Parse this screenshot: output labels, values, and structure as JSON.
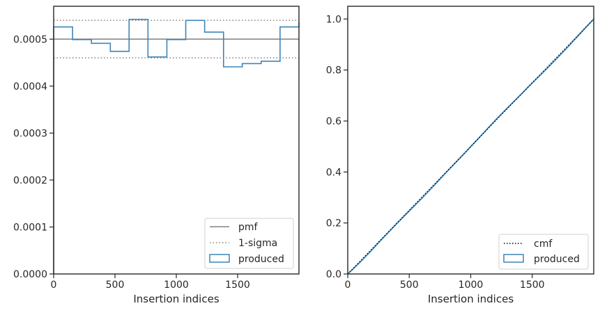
{
  "chart_data": [
    {
      "type": "step",
      "xlabel": "Insertion indices",
      "ylabel": "",
      "xlim": [
        0,
        2000
      ],
      "ylim": [
        0,
        0.00057
      ],
      "xticks": [
        0,
        500,
        1000,
        1500
      ],
      "xtick_labels": [
        "0",
        "500",
        "1000",
        "1500"
      ],
      "yticks": [
        0,
        0.0001,
        0.0002,
        0.0003,
        0.0004,
        0.0005
      ],
      "ytick_labels": [
        "0.0000",
        "0.0001",
        "0.0002",
        "0.0003",
        "0.0004",
        "0.0005"
      ],
      "legend_position": "lower right",
      "legend": [
        "pmf",
        "1-sigma",
        "produced"
      ],
      "pmf": 0.0005,
      "sigma_band": [
        0.00046,
        0.00054
      ],
      "bin_edges": [
        0,
        154,
        308,
        462,
        615,
        769,
        923,
        1077,
        1231,
        1385,
        1538,
        1692,
        1846,
        2000
      ],
      "produced": [
        0.000526,
        0.000499,
        0.000491,
        0.000474,
        0.000542,
        0.000462,
        0.000499,
        0.00054,
        0.000515,
        0.000441,
        0.000448,
        0.000453,
        0.000526,
        0.000536
      ]
    },
    {
      "type": "line",
      "xlabel": "Insertion indices",
      "ylabel": "",
      "xlim": [
        0,
        2000
      ],
      "ylim": [
        0,
        1.05
      ],
      "xticks": [
        0,
        500,
        1000,
        1500
      ],
      "xtick_labels": [
        "0",
        "500",
        "1000",
        "1500"
      ],
      "yticks": [
        0,
        0.2,
        0.4,
        0.6,
        0.8,
        1.0
      ],
      "ytick_labels": [
        "0.0",
        "0.2",
        "0.4",
        "0.6",
        "0.8",
        "1.0"
      ],
      "legend_position": "lower right",
      "legend": [
        "cmf",
        "produced"
      ],
      "cmf": {
        "x": [
          0,
          2000
        ],
        "y": [
          0,
          1.0
        ]
      },
      "produced": {
        "x": [
          0,
          100,
          200,
          300,
          400,
          500,
          600,
          700,
          800,
          900,
          1000,
          1100,
          1200,
          1300,
          1400,
          1500,
          1600,
          1700,
          1800,
          1900,
          2000
        ],
        "y": [
          0,
          0.046,
          0.096,
          0.148,
          0.198,
          0.247,
          0.296,
          0.346,
          0.398,
          0.448,
          0.499,
          0.551,
          0.603,
          0.652,
          0.7,
          0.749,
          0.796,
          0.845,
          0.896,
          0.948,
          1.0
        ]
      }
    }
  ],
  "colors": {
    "produced": "#3d85b8",
    "pmf": "#808080",
    "sigma": "#808080",
    "cmf": "#000000",
    "axes": "#262626"
  }
}
